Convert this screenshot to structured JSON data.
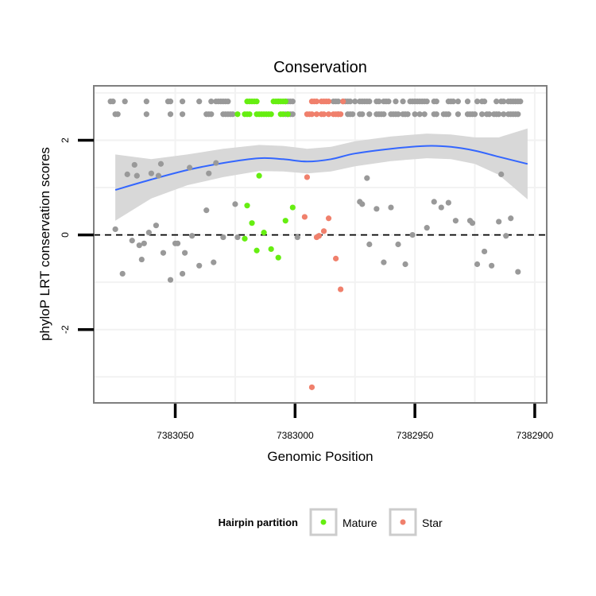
{
  "chart_data": {
    "type": "scatter",
    "title": "Conservation",
    "xlabel": "Genomic Position",
    "ylabel": "phyloP LRT conservation scores",
    "x_reversed": true,
    "xlim": [
      7383084,
      7382895
    ],
    "ylim": [
      -3.55,
      3.15
    ],
    "grid": true,
    "x_ticks": [
      {
        "value": 7383050,
        "label": "7383050"
      },
      {
        "value": 7383000,
        "label": "7383000"
      },
      {
        "value": 7382950,
        "label": "7382950"
      },
      {
        "value": 7382900,
        "label": "7382900"
      }
    ],
    "y_ticks": [
      {
        "value": -2,
        "label": "-2"
      },
      {
        "value": 0,
        "label": "0"
      },
      {
        "value": 2,
        "label": "2"
      }
    ],
    "reference_line": {
      "y": 0,
      "style": "dashed"
    },
    "colors": {
      "other": "#999999",
      "Mature": "#66ee11",
      "Star": "#f0806c",
      "smooth": "#3366ff",
      "ribbon": "#d6d6d6",
      "panel_border": "#7f7f7f",
      "grid": "#f2f2f2"
    },
    "legend": {
      "title": "Hairpin partition",
      "position": "bottom",
      "entries": [
        {
          "name": "Mature",
          "color": "#66ee11"
        },
        {
          "name": "Star",
          "color": "#f0806c"
        }
      ]
    },
    "series": [
      {
        "key": "other",
        "points": [
          [
            7383075,
            0.12
          ],
          [
            7383072,
            -0.82
          ],
          [
            7383070,
            1.28
          ],
          [
            7383068,
            -0.12
          ],
          [
            7383067,
            1.48
          ],
          [
            7383066,
            1.25
          ],
          [
            7383065,
            -0.22
          ],
          [
            7383064,
            -0.52
          ],
          [
            7383063,
            -0.18
          ],
          [
            7383061,
            0.05
          ],
          [
            7383060,
            1.3
          ],
          [
            7383058,
            0.2
          ],
          [
            7383057,
            1.25
          ],
          [
            7383056,
            1.5
          ],
          [
            7383055,
            -0.38
          ],
          [
            7383052,
            -0.95
          ],
          [
            7383050,
            -0.18
          ],
          [
            7383049,
            -0.18
          ],
          [
            7383047,
            -0.82
          ],
          [
            7383046,
            -0.38
          ],
          [
            7383044,
            1.42
          ],
          [
            7383043,
            -0.02
          ],
          [
            7383040,
            -0.65
          ],
          [
            7383037,
            0.52
          ],
          [
            7383036,
            1.3
          ],
          [
            7383034,
            -0.58
          ],
          [
            7383033,
            1.52
          ],
          [
            7383030,
            -0.05
          ],
          [
            7383025,
            0.65
          ],
          [
            7383024,
            -0.05
          ],
          [
            7382999,
            -0.05
          ],
          [
            7382973,
            0.7
          ],
          [
            7382972,
            0.65
          ],
          [
            7382970,
            1.2
          ],
          [
            7382969,
            -0.2
          ],
          [
            7382966,
            0.55
          ],
          [
            7382963,
            -0.58
          ],
          [
            7382960,
            0.58
          ],
          [
            7382957,
            -0.2
          ],
          [
            7382954,
            -0.62
          ],
          [
            7382951,
            0.0
          ],
          [
            7382945,
            0.15
          ],
          [
            7382942,
            0.7
          ],
          [
            7382939,
            0.58
          ],
          [
            7382936,
            0.68
          ],
          [
            7382933,
            0.3
          ],
          [
            7382927,
            0.3
          ],
          [
            7382926,
            0.25
          ],
          [
            7382924,
            -0.62
          ],
          [
            7382921,
            -0.35
          ],
          [
            7382918,
            -0.65
          ],
          [
            7382915,
            0.28
          ],
          [
            7382914,
            1.28
          ],
          [
            7382912,
            -0.02
          ],
          [
            7382910,
            0.35
          ],
          [
            7382907,
            -0.78
          ]
        ],
        "top_rows": [
          {
            "y": 2.82,
            "x": [
              7383077,
              7383076,
              7383071,
              7383062,
              7383053,
              7383052,
              7383047,
              7383040,
              7383035,
              7383033,
              7383032,
              7383031,
              7383030,
              7383029,
              7383028,
              7383007,
              7383004,
              7383003,
              7383002,
              7383001,
              7382984,
              7382983,
              7382982,
              7382980,
              7382979,
              7382978,
              7382977,
              7382975,
              7382973,
              7382972,
              7382971,
              7382970,
              7382969,
              7382966,
              7382965,
              7382963,
              7382962,
              7382961,
              7382958,
              7382955,
              7382952,
              7382951,
              7382950,
              7382949,
              7382948,
              7382947,
              7382946,
              7382945,
              7382942,
              7382941,
              7382936,
              7382935,
              7382934,
              7382932,
              7382928,
              7382924,
              7382922,
              7382921,
              7382916,
              7382914,
              7382913,
              7382911,
              7382910,
              7382909,
              7382908,
              7382907,
              7382906
            ]
          },
          {
            "y": 2.55,
            "x": [
              7383075,
              7383074,
              7383062,
              7383052,
              7383047,
              7383037,
              7383036,
              7383035,
              7383030,
              7383029,
              7383028,
              7383027,
              7383026,
              7383004,
              7383003,
              7383002,
              7383001,
              7382982,
              7382978,
              7382977,
              7382976,
              7382973,
              7382972,
              7382969,
              7382966,
              7382965,
              7382964,
              7382963,
              7382960,
              7382959,
              7382958,
              7382957,
              7382955,
              7382954,
              7382953,
              7382950,
              7382948,
              7382946,
              7382942,
              7382941,
              7382938,
              7382937,
              7382936,
              7382932,
              7382928,
              7382927,
              7382926,
              7382925,
              7382922,
              7382920,
              7382919,
              7382917,
              7382916,
              7382915,
              7382913,
              7382911,
              7382910,
              7382909,
              7382908,
              7382907
            ]
          }
        ]
      },
      {
        "key": "Mature",
        "name": "Mature",
        "points": [
          [
            7383021,
            -0.08
          ],
          [
            7383020,
            0.62
          ],
          [
            7383018,
            0.25
          ],
          [
            7383016,
            -0.33
          ],
          [
            7383015,
            1.25
          ],
          [
            7383013,
            0.05
          ],
          [
            7383010,
            -0.3
          ],
          [
            7383007,
            -0.48
          ],
          [
            7383004,
            0.3
          ],
          [
            7383001,
            0.58
          ]
        ],
        "top_rows": [
          {
            "y": 2.82,
            "x": [
              7383020,
              7383019,
              7383018,
              7383017,
              7383016,
              7383009,
              7383008,
              7383007,
              7383006,
              7383005,
              7383004
            ]
          },
          {
            "y": 2.55,
            "x": [
              7383024,
              7383021,
              7383020,
              7383019,
              7383016,
              7383015,
              7383014,
              7383013,
              7383012,
              7383011,
              7383010,
              7383006,
              7383005,
              7383003
            ]
          }
        ]
      },
      {
        "key": "Star",
        "name": "Star",
        "points": [
          [
            7382996,
            0.38
          ],
          [
            7382995,
            1.22
          ],
          [
            7382993,
            -3.22
          ],
          [
            7382991,
            -0.05
          ],
          [
            7382990,
            -0.02
          ],
          [
            7382988,
            0.08
          ],
          [
            7382986,
            0.35
          ],
          [
            7382983,
            -0.5
          ],
          [
            7382981,
            -1.15
          ]
        ],
        "top_rows": [
          {
            "y": 2.82,
            "x": [
              7382993,
              7382992,
              7382991,
              7382989,
              7382988,
              7382987,
              7382986,
              7382980
            ]
          },
          {
            "y": 2.55,
            "x": [
              7382995,
              7382994,
              7382993,
              7382991,
              7382989,
              7382988,
              7382986,
              7382984,
              7382983,
              7382982,
              7382981
            ]
          }
        ]
      }
    ],
    "smooth": {
      "x": [
        7383075,
        7383060,
        7383045,
        7383030,
        7383015,
        7383005,
        7382995,
        7382985,
        7382975,
        7382960,
        7382945,
        7382935,
        7382925,
        7382915,
        7382903
      ],
      "y": [
        0.95,
        1.17,
        1.37,
        1.52,
        1.62,
        1.6,
        1.55,
        1.6,
        1.72,
        1.82,
        1.88,
        1.86,
        1.78,
        1.65,
        1.5
      ],
      "lower": [
        0.3,
        0.77,
        1.05,
        1.22,
        1.35,
        1.34,
        1.3,
        1.34,
        1.45,
        1.56,
        1.62,
        1.6,
        1.5,
        1.27,
        0.75
      ],
      "upper": [
        1.7,
        1.6,
        1.7,
        1.82,
        1.9,
        1.88,
        1.82,
        1.86,
        1.98,
        2.08,
        2.14,
        2.12,
        2.06,
        2.06,
        2.25
      ]
    }
  }
}
